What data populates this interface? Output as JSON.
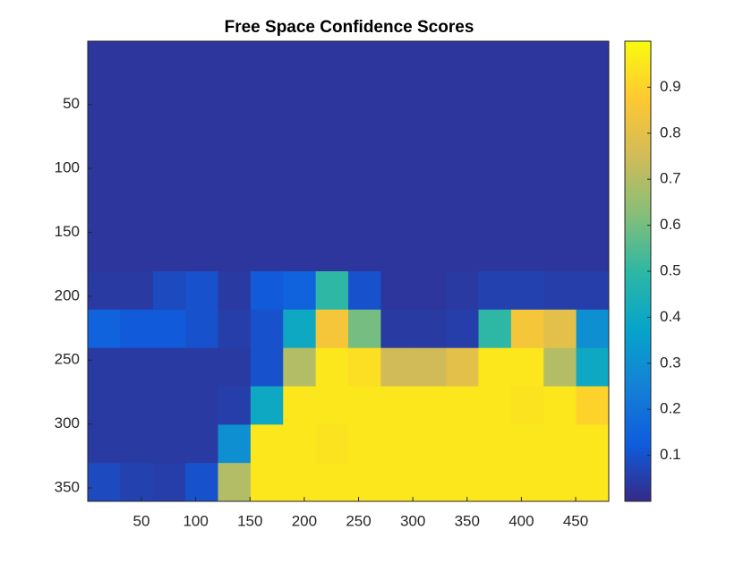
{
  "chart_data": {
    "type": "heatmap",
    "title": "Free Space Confidence Scores",
    "x": [
      15.5,
      45.5,
      75.5,
      105.5,
      135.5,
      165.5,
      195.5,
      225.5,
      255.5,
      285.5,
      315.5,
      345.5,
      375.5,
      405.5,
      435.5,
      465.5
    ],
    "y": [
      15.5,
      45.5,
      75.5,
      105.5,
      135.5,
      165.5,
      195.5,
      225.5,
      255.5,
      285.5,
      315.5,
      345.5
    ],
    "values": [
      [
        0.03,
        0.03,
        0.03,
        0.03,
        0.03,
        0.03,
        0.03,
        0.03,
        0.03,
        0.03,
        0.03,
        0.03,
        0.03,
        0.03,
        0.03,
        0.03
      ],
      [
        0.03,
        0.03,
        0.03,
        0.03,
        0.03,
        0.03,
        0.03,
        0.03,
        0.03,
        0.03,
        0.03,
        0.03,
        0.03,
        0.03,
        0.03,
        0.03
      ],
      [
        0.03,
        0.03,
        0.03,
        0.03,
        0.03,
        0.03,
        0.03,
        0.03,
        0.03,
        0.03,
        0.03,
        0.03,
        0.03,
        0.03,
        0.03,
        0.03
      ],
      [
        0.03,
        0.03,
        0.03,
        0.03,
        0.03,
        0.03,
        0.03,
        0.03,
        0.03,
        0.03,
        0.03,
        0.03,
        0.03,
        0.03,
        0.03,
        0.03
      ],
      [
        0.03,
        0.03,
        0.03,
        0.03,
        0.03,
        0.03,
        0.03,
        0.03,
        0.03,
        0.03,
        0.03,
        0.03,
        0.03,
        0.03,
        0.03,
        0.03
      ],
      [
        0.03,
        0.03,
        0.03,
        0.03,
        0.03,
        0.03,
        0.03,
        0.03,
        0.03,
        0.03,
        0.03,
        0.03,
        0.03,
        0.03,
        0.03,
        0.03
      ],
      [
        0.04,
        0.04,
        0.08,
        0.1,
        0.04,
        0.12,
        0.15,
        0.5,
        0.1,
        0.03,
        0.03,
        0.04,
        0.06,
        0.06,
        0.05,
        0.05
      ],
      [
        0.15,
        0.12,
        0.12,
        0.1,
        0.05,
        0.1,
        0.4,
        0.85,
        0.6,
        0.04,
        0.04,
        0.05,
        0.5,
        0.85,
        0.8,
        0.3
      ],
      [
        0.04,
        0.04,
        0.04,
        0.04,
        0.04,
        0.1,
        0.7,
        0.95,
        0.93,
        0.75,
        0.75,
        0.8,
        0.95,
        0.95,
        0.7,
        0.4
      ],
      [
        0.04,
        0.04,
        0.04,
        0.04,
        0.05,
        0.4,
        0.95,
        0.95,
        0.95,
        0.95,
        0.95,
        0.95,
        0.95,
        0.94,
        0.95,
        0.9
      ],
      [
        0.04,
        0.04,
        0.04,
        0.04,
        0.3,
        0.95,
        0.95,
        0.94,
        0.95,
        0.95,
        0.95,
        0.95,
        0.95,
        0.95,
        0.95,
        0.95
      ],
      [
        0.08,
        0.06,
        0.05,
        0.1,
        0.7,
        0.95,
        0.95,
        0.95,
        0.95,
        0.95,
        0.95,
        0.95,
        0.95,
        0.95,
        0.95,
        0.95
      ]
    ],
    "xlim": [
      0.5,
      480.5
    ],
    "xticks": [
      50,
      100,
      150,
      200,
      250,
      300,
      350,
      400,
      450
    ],
    "ylim": [
      0.5,
      360.5
    ],
    "yticks": [
      50,
      100,
      150,
      200,
      250,
      300,
      350
    ],
    "y_reversed": true,
    "clim": [
      0,
      1
    ],
    "cticks": [
      0.1,
      0.2,
      0.3,
      0.4,
      0.5,
      0.6,
      0.7,
      0.8,
      0.9
    ],
    "colormap": [
      "#352a87",
      "#0f5cdd",
      "#1481d6",
      "#06a4ca",
      "#2eb7a4",
      "#87bf77",
      "#d1bb59",
      "#fec832",
      "#f9fb0e"
    ]
  }
}
